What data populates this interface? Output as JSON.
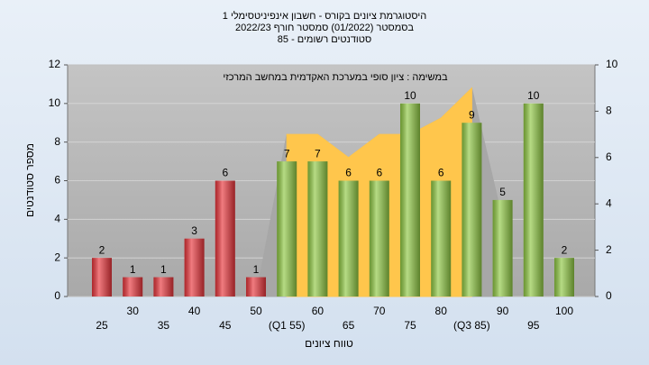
{
  "chart_data": {
    "type": "bar",
    "title_lines": [
      "היסטוגרמת ציונים בקורס - חשבון אינפיניטסימלי 1",
      "בסמסטר  (01/2022)  סמסטר חורף 2022/23",
      "סטודנטים רשומים - 85"
    ],
    "annotation": "במשימה : ציון סופי במערכת האקדמית במחשב המרכזי",
    "x_label": "טווח ציונים",
    "y_label": "מספר סטודנטים",
    "categories": [
      "25",
      "30",
      "35",
      "40",
      "45",
      "50",
      "(Q1 55)",
      "60",
      "65",
      "70",
      "75",
      "80",
      "(Q3 85)",
      "90",
      "95",
      "100"
    ],
    "values": [
      2,
      1,
      1,
      3,
      6,
      1,
      7,
      7,
      6,
      6,
      10,
      6,
      9,
      5,
      10,
      2
    ],
    "bar_colors": [
      "#e8353b",
      "#e8353b",
      "#e8353b",
      "#e8353b",
      "#e8353b",
      "#e8353b",
      "#8fc843",
      "#8fc843",
      "#8fc843",
      "#8fc843",
      "#8fc843",
      "#8fc843",
      "#8fc843",
      "#8fc843",
      "#8fc843",
      "#8fc843"
    ],
    "areas": [
      {
        "color": "#a7a7a7",
        "axis": "y2",
        "values": [
          null,
          null,
          null,
          null,
          null,
          0,
          7,
          7,
          6,
          7,
          7,
          7.7,
          9,
          3.3,
          null,
          null
        ]
      },
      {
        "color": "#ffc64c",
        "axis": "y2",
        "values": [
          null,
          null,
          null,
          null,
          null,
          null,
          7,
          7,
          6,
          7,
          7,
          7.7,
          9,
          null,
          null,
          null
        ]
      }
    ],
    "ylim": [
      0,
      12
    ],
    "yticks": [
      0,
      2,
      4,
      6,
      8,
      10,
      12
    ],
    "y2lim": [
      0,
      10
    ],
    "y2ticks": [
      0,
      2,
      4,
      6,
      8,
      10
    ],
    "grid": true
  }
}
